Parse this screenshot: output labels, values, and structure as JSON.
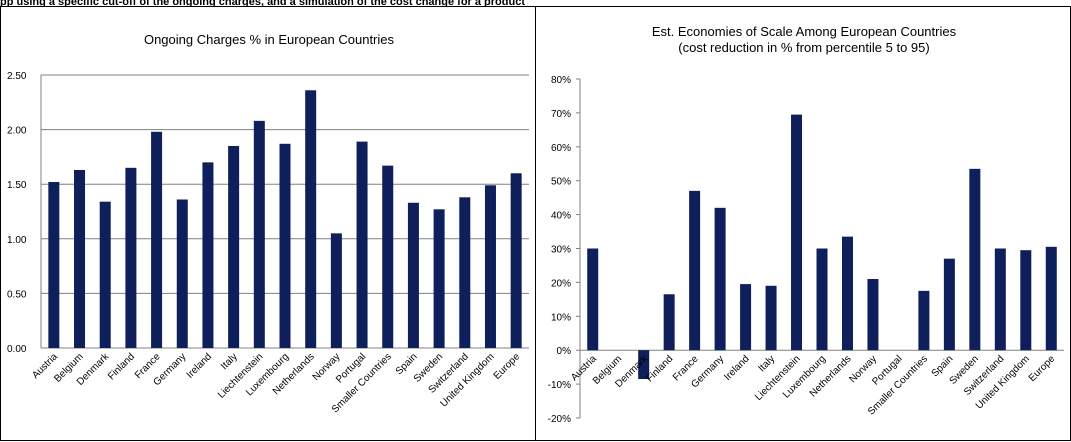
{
  "header": {
    "title": "pp using a specific cut-off of the ongoing charges, and a simulation of the cost change for a product"
  },
  "chart_data": [
    {
      "type": "bar",
      "title": "Ongoing Charges % in European Countries",
      "subtitle": "",
      "xlabel": "",
      "ylabel": "",
      "categories": [
        "Austria",
        "Belgium",
        "Denmark",
        "Finland",
        "France",
        "Germany",
        "Ireland",
        "Italy",
        "Liechtenstein",
        "Luxembourg",
        "Netherlands",
        "Norway",
        "Portugal",
        "Smaller Countries",
        "Spain",
        "Sweden",
        "Switzerland",
        "United Kingdom",
        "Europe"
      ],
      "values": [
        1.52,
        1.63,
        1.34,
        1.65,
        1.98,
        1.36,
        1.7,
        1.85,
        2.08,
        1.87,
        2.36,
        1.05,
        1.89,
        1.67,
        1.33,
        1.27,
        1.38,
        1.49,
        1.6
      ],
      "ylim": [
        0,
        2.5
      ],
      "yticks": [
        "0.00",
        "0.50",
        "1.00",
        "1.50",
        "2.00",
        "2.50"
      ],
      "grid": true,
      "bar_color": "#0e1f5b"
    },
    {
      "type": "bar",
      "title": "Est. Economies of Scale Among European Countries",
      "subtitle": "(cost reduction in % from percentile 5 to 95)",
      "xlabel": "",
      "ylabel": "",
      "categories": [
        "Austria",
        "Belgium",
        "Denmark",
        "Finland",
        "France",
        "Germany",
        "Ireland",
        "Italy",
        "Liechtenstein",
        "Luxembourg",
        "Netherlands",
        "Norway",
        "Portugal",
        "Smaller Countries",
        "Spain",
        "Sweden",
        "Switzerland",
        "United Kingdom",
        "Europe"
      ],
      "values": [
        30,
        0,
        -8.5,
        16.5,
        47,
        42,
        19.5,
        19,
        69.5,
        30,
        33.5,
        21,
        0,
        17.5,
        27,
        53.5,
        30,
        29.5,
        30.5
      ],
      "ylim": [
        -20,
        80
      ],
      "yticks": [
        "-20%",
        "-10%",
        "0%",
        "10%",
        "20%",
        "30%",
        "40%",
        "50%",
        "60%",
        "70%",
        "80%"
      ],
      "grid": false,
      "bar_color": "#0e1f5b"
    }
  ]
}
